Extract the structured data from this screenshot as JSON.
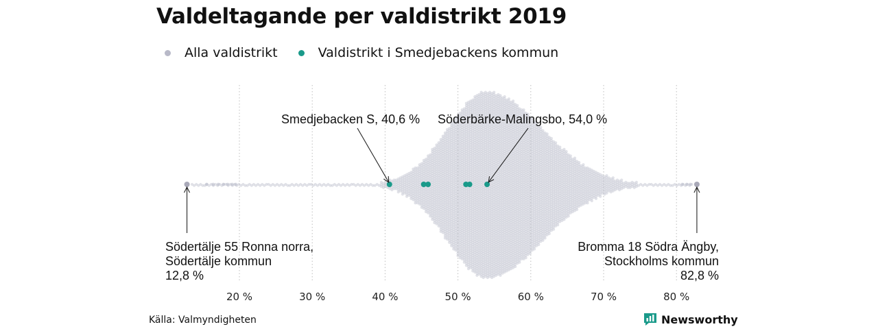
{
  "chart_data": {
    "type": "scatter",
    "title": "Valdeltagande per valdistrikt 2019",
    "xlim": [
      10,
      85
    ],
    "x_ticks": [
      20,
      30,
      40,
      50,
      60,
      70,
      80
    ],
    "x_tick_labels": [
      "20 %",
      "30 %",
      "40 %",
      "50 %",
      "60 %",
      "70 %",
      "80 %"
    ],
    "grid": "vertical dotted",
    "legend_position": "top-left",
    "series": [
      {
        "name": "Alla valdistrikt",
        "color": "#b8b9c8",
        "distribution": "beeswarm",
        "min": 12.8,
        "max": 82.8,
        "peak": 54.0
      },
      {
        "name": "Valdistrikt i Smedjebackens kommun",
        "color": "#1a9a8a",
        "values": [
          40.6,
          45.3,
          45.9,
          51.1,
          51.6,
          54.0
        ]
      }
    ],
    "annotations": [
      {
        "text": "Smedjebacken S, 40,6 %",
        "x": 40.6
      },
      {
        "text": "Söderbärke-Malingsbo, 54,0 %",
        "x": 54.0
      },
      {
        "lines": [
          "Södertälje 55 Ronna norra,",
          "Södertälje kommun",
          "12,8 %"
        ],
        "x": 12.8
      },
      {
        "lines": [
          "Bromma 18 Södra Ängby,",
          "Stockholms kommun",
          "82,8 %"
        ],
        "x": 82.8
      }
    ]
  },
  "legend": [
    {
      "label": "Alla valdistrikt",
      "color": "#b8b9c8"
    },
    {
      "label": "Valdistrikt i Smedjebackens kommun",
      "color": "#1a9a8a"
    }
  ],
  "source": "Källa: Valmyndigheten",
  "brand": {
    "name": "Newsworthy",
    "color": "#1a9a8a"
  }
}
